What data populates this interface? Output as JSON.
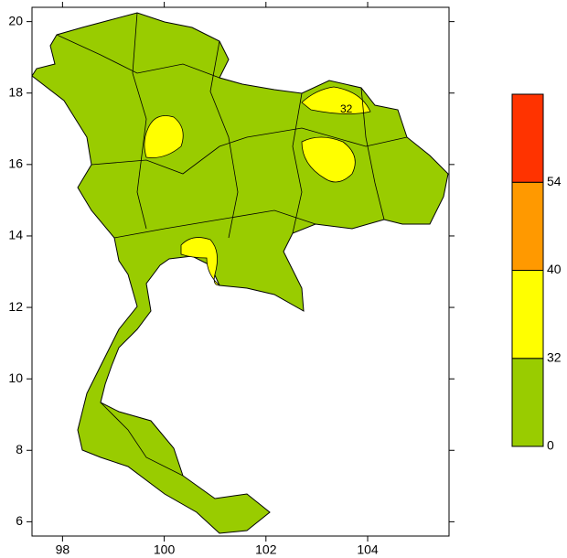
{
  "map": {
    "xlim": [
      97.4,
      105.6
    ],
    "ylim": [
      5.6,
      20.4
    ],
    "xticks": [
      98,
      100,
      102,
      104
    ],
    "yticks": [
      6,
      8,
      10,
      12,
      14,
      16,
      18,
      20
    ],
    "land_color": "#99cc00",
    "contour_label": "32"
  },
  "colorbar": {
    "levels": [
      0,
      32,
      40,
      54
    ],
    "colors": [
      "#99cc00",
      "#ffff00",
      "#ff9900",
      "#ff3300"
    ]
  }
}
